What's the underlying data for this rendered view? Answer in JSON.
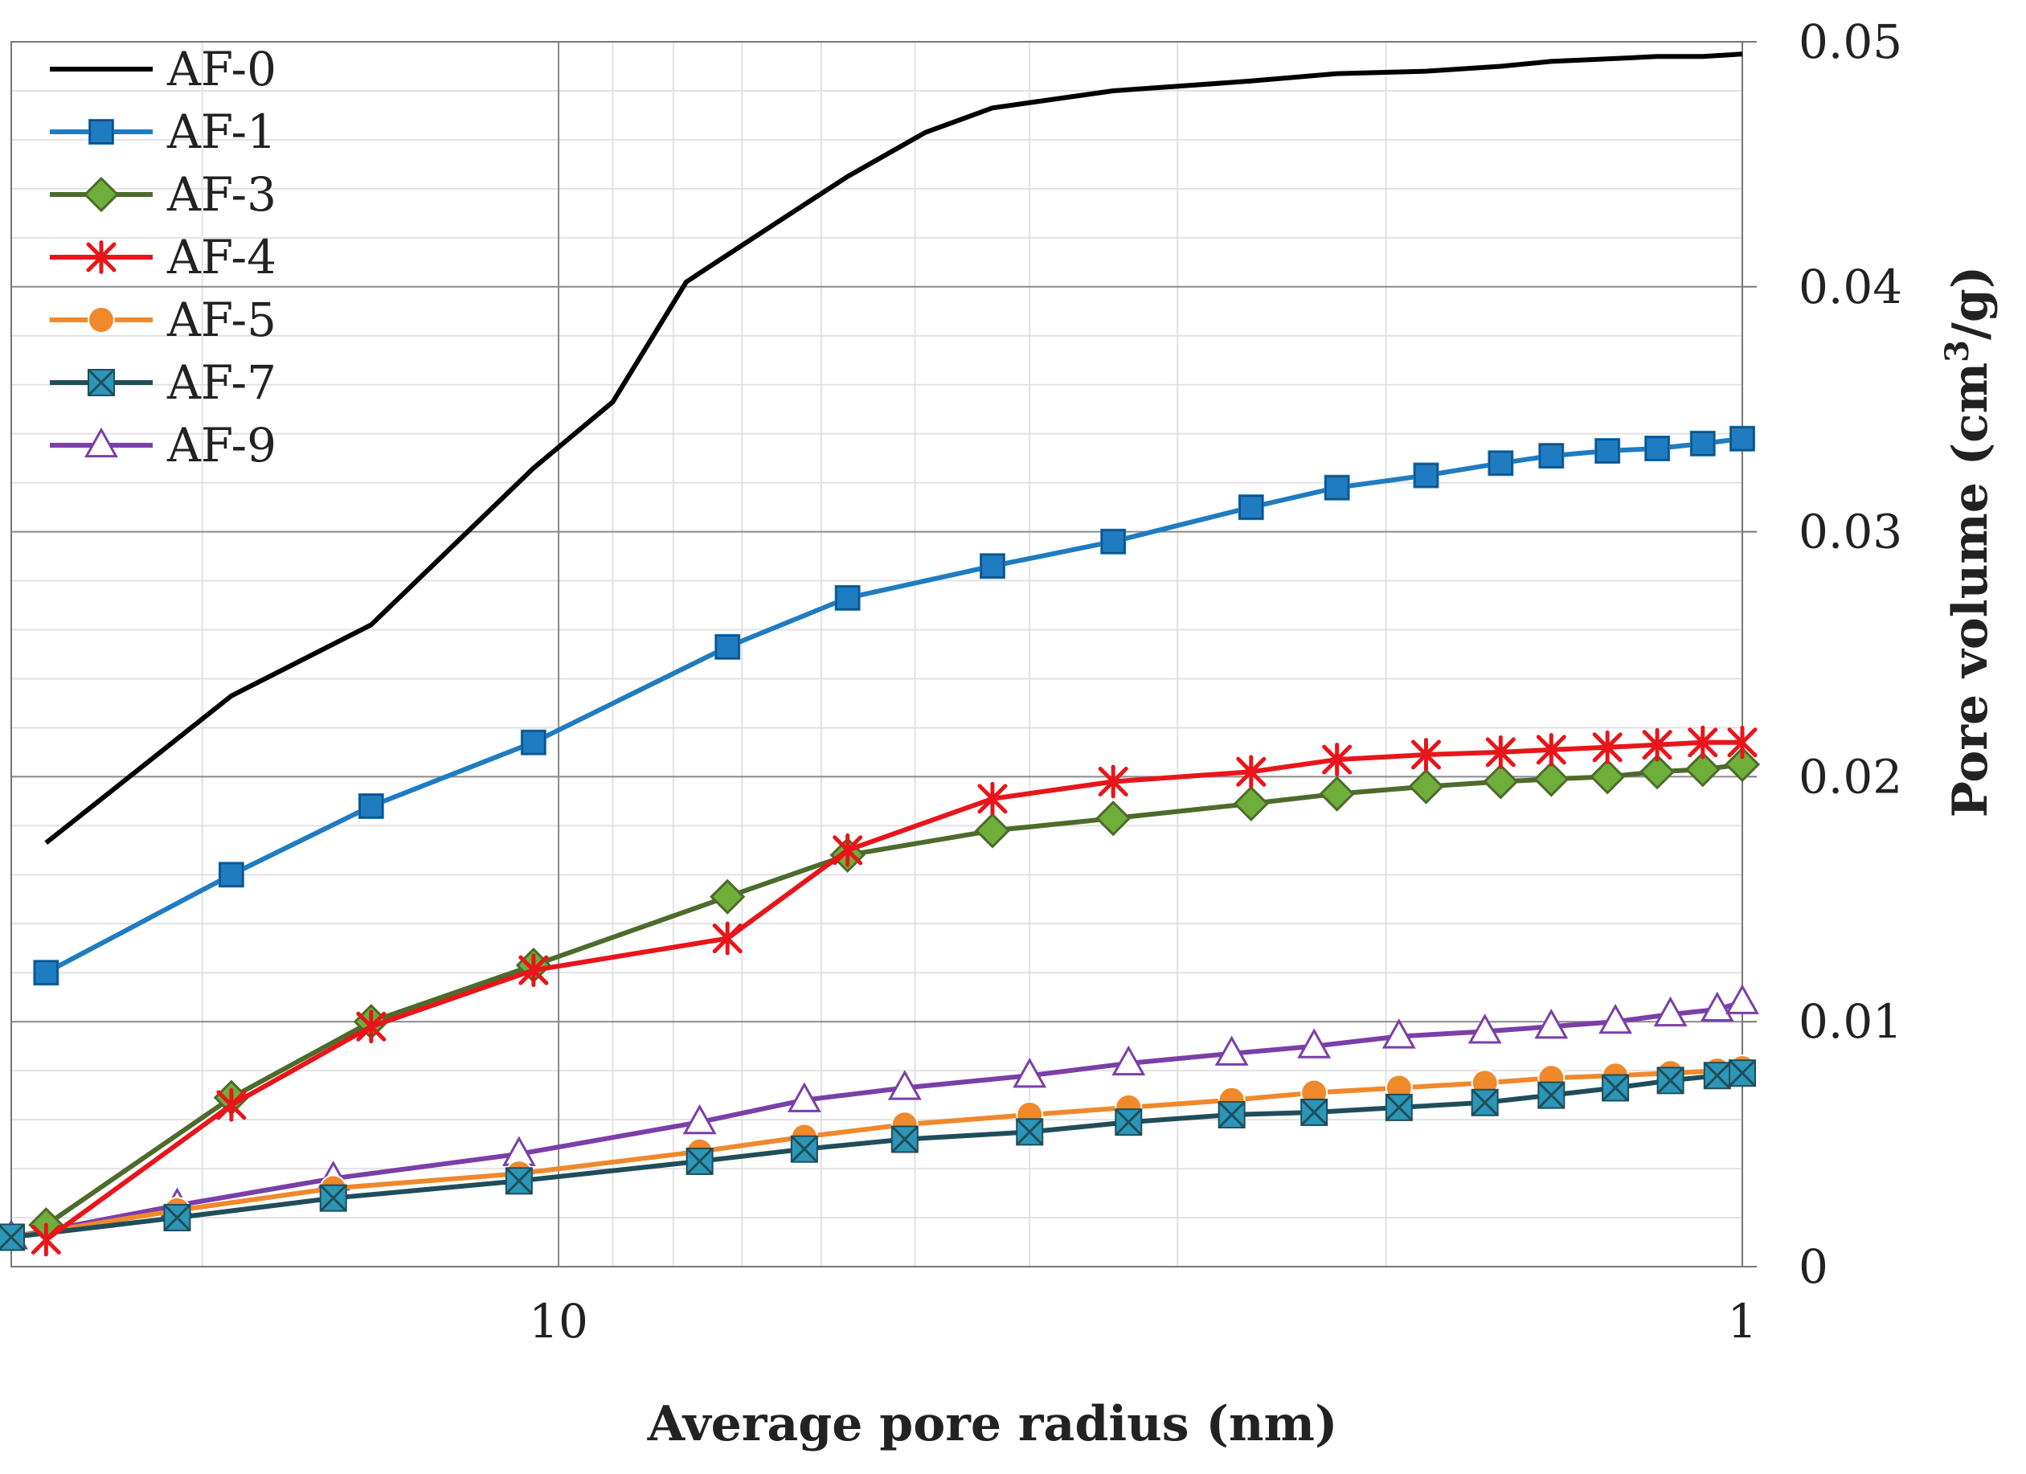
{
  "chart_data": {
    "type": "line",
    "title": "",
    "xlabel": "Average pore radius (nm)",
    "ylabel": "Pore volume (cm³/g)",
    "ylabel_parts": {
      "main": "Pore volume (cm",
      "sup": "3",
      "tail": "/g)"
    },
    "x_scale": "log",
    "x_reversed": true,
    "xlim": [
      29,
      1
    ],
    "ylim": [
      0,
      0.05
    ],
    "y_ticks": [
      0,
      0.01,
      0.02,
      0.03,
      0.04,
      0.05
    ],
    "y_tick_labels": [
      "0",
      "0.01",
      "0.02",
      "0.03",
      "0.04",
      "0.05"
    ],
    "x_ticks": [
      10,
      1
    ],
    "x_tick_labels": [
      "10",
      "1"
    ],
    "legend_position": "top-left",
    "series": [
      {
        "name": "AF-0",
        "color": "#000000",
        "marker": "none",
        "x": [
          27.1,
          18.9,
          14.4,
          10.5,
          9.0,
          7.8,
          6.6,
          5.7,
          4.9,
          4.3,
          3.4,
          2.6,
          2.2,
          1.85,
          1.6,
          1.45,
          1.3,
          1.18,
          1.08,
          1.0
        ],
        "y": [
          0.0173,
          0.0233,
          0.0262,
          0.0326,
          0.0353,
          0.0402,
          0.0425,
          0.0445,
          0.0463,
          0.0473,
          0.048,
          0.0484,
          0.0487,
          0.0488,
          0.049,
          0.0492,
          0.0493,
          0.0494,
          0.0494,
          0.0495
        ]
      },
      {
        "name": "AF-1",
        "color": "#1f7cc1",
        "marker": "square",
        "x": [
          27.1,
          18.9,
          14.4,
          10.5,
          7.2,
          5.7,
          4.3,
          3.4,
          2.6,
          2.2,
          1.85,
          1.6,
          1.45,
          1.3,
          1.18,
          1.08,
          1.0
        ],
        "y": [
          0.012,
          0.016,
          0.0188,
          0.0214,
          0.0253,
          0.0273,
          0.0286,
          0.0296,
          0.031,
          0.0318,
          0.0323,
          0.0328,
          0.0331,
          0.0333,
          0.0334,
          0.0336,
          0.0338
        ]
      },
      {
        "name": "AF-3",
        "color": "#4d6b2a",
        "fill": "#6fae3b",
        "marker": "diamond",
        "x": [
          27.1,
          18.9,
          14.4,
          10.5,
          7.2,
          5.7,
          4.3,
          3.4,
          2.6,
          2.2,
          1.85,
          1.6,
          1.45,
          1.3,
          1.18,
          1.08,
          1.0
        ],
        "y": [
          0.0017,
          0.0069,
          0.01,
          0.0123,
          0.0151,
          0.0168,
          0.0178,
          0.0183,
          0.0189,
          0.0193,
          0.0196,
          0.0198,
          0.0199,
          0.02,
          0.0202,
          0.0203,
          0.0205
        ]
      },
      {
        "name": "AF-4",
        "color": "#e8151b",
        "marker": "star",
        "x": [
          27.1,
          18.9,
          14.4,
          10.5,
          7.2,
          5.7,
          4.3,
          3.4,
          2.6,
          2.2,
          1.85,
          1.6,
          1.45,
          1.3,
          1.18,
          1.08,
          1.0
        ],
        "y": [
          0.0011,
          0.0066,
          0.0098,
          0.0121,
          0.0134,
          0.017,
          0.0191,
          0.0198,
          0.0202,
          0.0207,
          0.0209,
          0.021,
          0.0211,
          0.0212,
          0.0213,
          0.0214,
          0.0214
        ]
      },
      {
        "name": "AF-5",
        "color": "#f0882c",
        "marker": "circle",
        "x": [
          29.0,
          21.0,
          15.5,
          10.8,
          7.6,
          6.2,
          5.1,
          4.0,
          3.3,
          2.7,
          2.3,
          1.95,
          1.65,
          1.45,
          1.28,
          1.15,
          1.05,
          1.0
        ],
        "y": [
          0.0012,
          0.0023,
          0.0032,
          0.0038,
          0.0047,
          0.0053,
          0.0058,
          0.0062,
          0.0065,
          0.0068,
          0.0071,
          0.0073,
          0.0075,
          0.0077,
          0.0078,
          0.0079,
          0.008,
          0.0081
        ]
      },
      {
        "name": "AF-7",
        "color": "#1f4e5a",
        "fill": "#2b96b8",
        "marker": "xsquare",
        "x": [
          29.0,
          21.0,
          15.5,
          10.8,
          7.6,
          6.2,
          5.1,
          4.0,
          3.3,
          2.7,
          2.3,
          1.95,
          1.65,
          1.45,
          1.28,
          1.15,
          1.05,
          1.0
        ],
        "y": [
          0.0012,
          0.002,
          0.0028,
          0.0035,
          0.0043,
          0.0048,
          0.0052,
          0.0055,
          0.0059,
          0.0062,
          0.0063,
          0.0065,
          0.0067,
          0.007,
          0.0073,
          0.0076,
          0.0078,
          0.0079
        ]
      },
      {
        "name": "AF-9",
        "color": "#7a3fa8",
        "marker": "triangle",
        "x": [
          29.0,
          21.0,
          15.5,
          10.8,
          7.6,
          6.2,
          5.1,
          4.0,
          3.3,
          2.7,
          2.3,
          1.95,
          1.65,
          1.45,
          1.28,
          1.15,
          1.05,
          1.0
        ],
        "y": [
          0.0012,
          0.0025,
          0.0036,
          0.0046,
          0.0059,
          0.0068,
          0.0073,
          0.0078,
          0.0083,
          0.0087,
          0.009,
          0.0094,
          0.0096,
          0.0098,
          0.01,
          0.0103,
          0.0105,
          0.0108
        ]
      }
    ]
  }
}
